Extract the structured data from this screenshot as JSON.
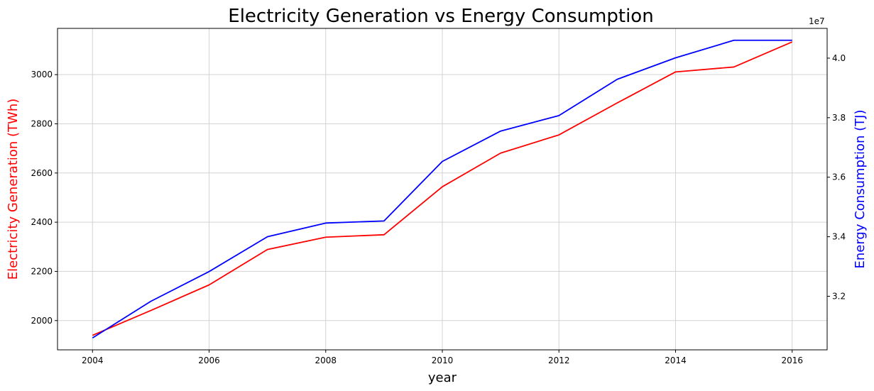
{
  "chart_data": {
    "type": "line",
    "title": "Electricity Generation vs Energy Consumption",
    "xlabel": "year",
    "x": [
      2004,
      2005,
      2006,
      2007,
      2008,
      2009,
      2010,
      2011,
      2012,
      2013,
      2014,
      2015,
      2016
    ],
    "xlim": [
      2003.4,
      2016.6
    ],
    "x_ticks": [
      2004,
      2006,
      2008,
      2010,
      2012,
      2014,
      2016
    ],
    "grid": true,
    "axes": {
      "left": {
        "label": "Electricity Generation (TWh)",
        "color": "#ff0000",
        "ylim": [
          1881,
          3188
        ],
        "ticks": [
          2000,
          2200,
          2400,
          2600,
          2800,
          3000
        ]
      },
      "right": {
        "label": "Energy Consumption (TJ)",
        "color": "#0000ff",
        "offset_label": "1e7",
        "ylim": [
          30200000,
          41000000
        ],
        "ticks": [
          32000000,
          34000000,
          36000000,
          38000000,
          40000000
        ],
        "tick_labels": [
          "3.2",
          "3.4",
          "3.6",
          "3.8",
          "4.0"
        ]
      }
    },
    "series": [
      {
        "axis": "left",
        "color": "#ff0000",
        "values": [
          1940,
          2041,
          2145,
          2289,
          2339,
          2349,
          2544,
          2681,
          2755,
          2885,
          3011,
          3031,
          3133
        ]
      },
      {
        "axis": "right",
        "color": "#0000ff",
        "values": [
          30600000,
          31830000,
          32830000,
          34000000,
          34460000,
          34530000,
          36530000,
          37550000,
          38070000,
          39290000,
          40010000,
          40600000,
          40600000
        ]
      }
    ]
  }
}
